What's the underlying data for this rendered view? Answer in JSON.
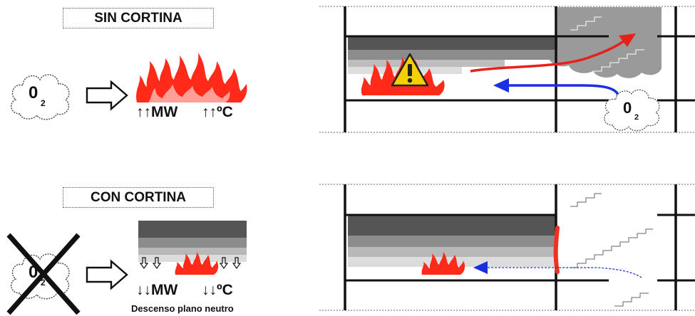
{
  "top": {
    "title": "SIN CORTINA",
    "oxygen_symbol": "0",
    "oxygen_subscript": "2",
    "power_label": "↑↑MW",
    "temp_label": "↑↑ºC",
    "tunnel_oxygen_symbol": "0",
    "tunnel_oxygen_subscript": "2"
  },
  "bottom": {
    "title": "CON CORTINA",
    "oxygen_symbol": "0",
    "oxygen_subscript": "2",
    "power_label": "↓↓MW",
    "temp_label": "↓↓ºC",
    "caption": "Descenso plano neutro"
  },
  "colors": {
    "fire": "#ff2a1a",
    "hot_flow_arrow": "#e8201a",
    "fresh_air_arrow": "#1a2fe0",
    "curtain": "#f03020",
    "smoke_dark": "#555555",
    "warning": "#f5d000"
  },
  "icons": [
    "cloud-icon",
    "hollow-arrow-icon",
    "fire-icon",
    "warning-icon",
    "cross-icon",
    "down-arrow-icon",
    "stairs-icon"
  ]
}
